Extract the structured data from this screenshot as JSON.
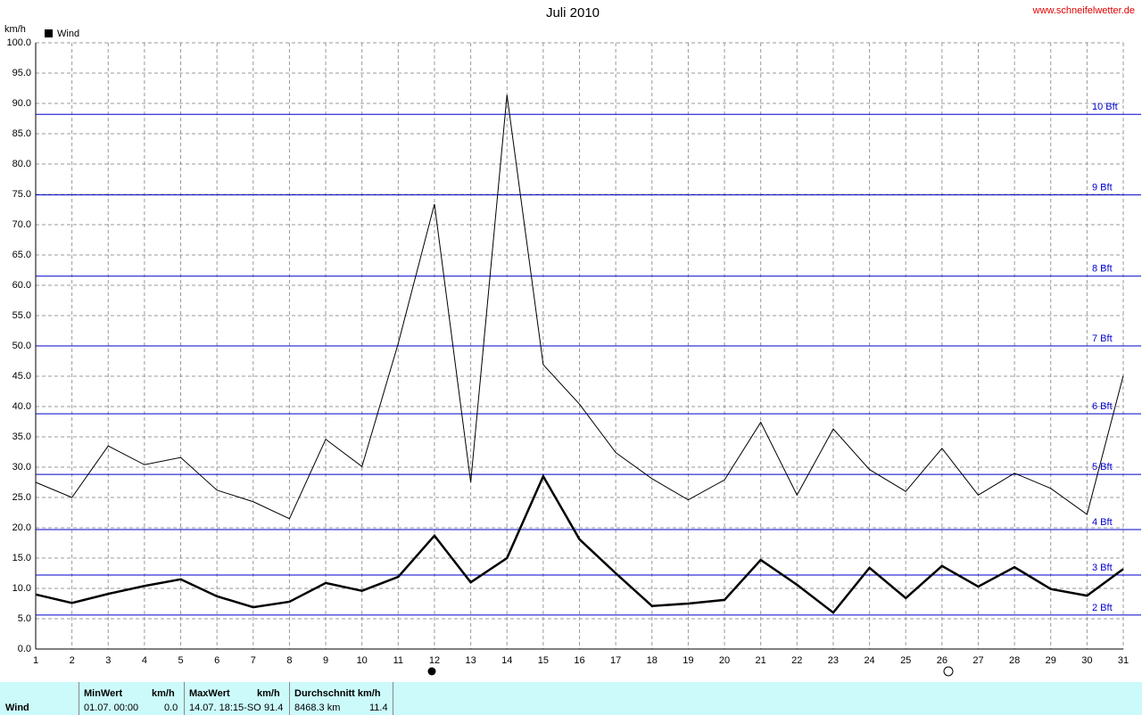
{
  "chart_data": {
    "type": "line",
    "title": "Juli 2010",
    "source": "www.schneifelwetter.de",
    "y_label": "km/h",
    "x": [
      1,
      2,
      3,
      4,
      5,
      6,
      7,
      8,
      9,
      10,
      11,
      12,
      13,
      14,
      15,
      16,
      17,
      18,
      19,
      20,
      21,
      22,
      23,
      24,
      25,
      26,
      27,
      28,
      29,
      30,
      31
    ],
    "series": [
      {
        "name": "Wind",
        "color": "#000000",
        "values": [
          9.0,
          7.6,
          9.1,
          10.4,
          11.5,
          8.7,
          6.9,
          7.8,
          10.9,
          9.6,
          11.9,
          18.7,
          11.0,
          15.0,
          28.5,
          18.1,
          12.5,
          7.1,
          7.5,
          8.1,
          14.7,
          10.6,
          6.0,
          13.4,
          8.4,
          13.7,
          10.3,
          13.5,
          9.9,
          8.8,
          13.2
        ]
      },
      {
        "color": "#000000",
        "values": [
          27.5,
          25.0,
          33.5,
          30.4,
          31.6,
          26.2,
          24.3,
          21.5,
          34.6,
          30.1,
          50.4,
          73.4,
          27.5,
          91.4,
          46.9,
          40.4,
          32.4,
          28.1,
          24.6,
          27.9,
          37.4,
          25.4,
          36.3,
          29.6,
          26.0,
          33.1,
          25.4,
          29.0,
          26.5,
          22.2,
          45.1
        ]
      }
    ],
    "xlim": [
      1,
      31
    ],
    "xticks": [
      1,
      2,
      3,
      4,
      5,
      6,
      7,
      8,
      9,
      10,
      11,
      12,
      13,
      14,
      15,
      16,
      17,
      18,
      19,
      20,
      21,
      22,
      23,
      24,
      25,
      26,
      27,
      28,
      29,
      30,
      31
    ],
    "ylim": [
      0,
      100
    ],
    "yticks": [
      {
        "value": 0,
        "label": "0.0"
      },
      {
        "value": 5,
        "label": "5.0"
      },
      {
        "value": 10,
        "label": "10.0"
      },
      {
        "value": 15,
        "label": "15.0"
      },
      {
        "value": 20,
        "label": "20.0"
      },
      {
        "value": 25,
        "label": "25.0"
      },
      {
        "value": 30,
        "label": "30.0"
      },
      {
        "value": 35,
        "label": "35.0"
      },
      {
        "value": 40,
        "label": "40.0"
      },
      {
        "value": 45,
        "label": "45.0"
      },
      {
        "value": 50,
        "label": "50.0"
      },
      {
        "value": 55,
        "label": "55.0"
      },
      {
        "value": 60,
        "label": "60.0"
      },
      {
        "value": 65,
        "label": "65.0"
      },
      {
        "value": 70,
        "label": "70.0"
      },
      {
        "value": 75,
        "label": "75.0"
      },
      {
        "value": 80,
        "label": "80.0"
      },
      {
        "value": 85,
        "label": "85.0"
      },
      {
        "value": 90,
        "label": "90.0"
      },
      {
        "value": 95,
        "label": "95.0"
      },
      {
        "value": 100,
        "label": "100.0"
      }
    ],
    "grid": true,
    "reference_color": "#0000cc",
    "reference_lines": [
      {
        "value": 5.6,
        "label": "2 Bft"
      },
      {
        "value": 12.2,
        "label": "3 Bft"
      },
      {
        "value": 19.7,
        "label": "4 Bft"
      },
      {
        "value": 28.8,
        "label": "5 Bft"
      },
      {
        "value": 38.8,
        "label": "6 Bft"
      },
      {
        "value": 50,
        "label": "7 Bft"
      },
      {
        "value": 61.5,
        "label": "8 Bft"
      },
      {
        "value": 74.9,
        "label": "9 Bft"
      },
      {
        "value": 88.2,
        "label": "10 Bft"
      }
    ]
  },
  "summary": {
    "row_label": "Wind",
    "min": {
      "header": "MinWert",
      "unit": "km/h",
      "time": "01.07.  00:00",
      "value": "0.0"
    },
    "max": {
      "header": "MaxWert",
      "unit": "km/h",
      "time": "14.07.  18:15-SO",
      "value": "91.4"
    },
    "avg": {
      "header": "Durchschnitt km/h",
      "distance": "8468.3 km",
      "value": "11.4"
    }
  }
}
